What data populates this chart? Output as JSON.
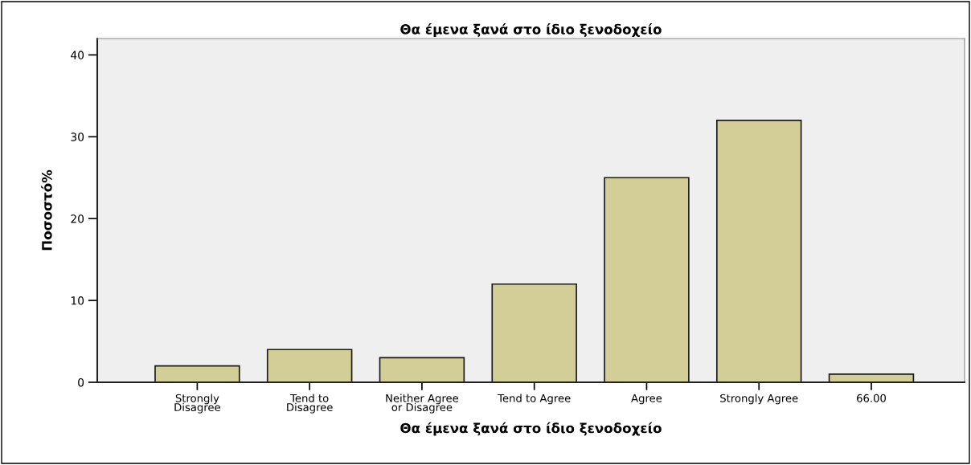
{
  "chart_data": {
    "type": "bar",
    "title": "Θα έμενα ξανά στο ίδιο ξενοδοχείο",
    "xlabel": "Θα έμενα ξανά στο ίδιο ξενοδοχείο",
    "ylabel": "Ποσοστό%",
    "categories": [
      "Strongly\nDisagree",
      "Tend to\nDisagree",
      "Neither Agree\nor Disagree",
      "Tend to Agree",
      "Agree",
      "Strongly Agree",
      "66.00"
    ],
    "values": [
      2,
      4,
      3,
      12,
      25,
      32,
      1
    ],
    "color": "#d3ce98",
    "ylim": [
      0,
      42
    ],
    "yticks": [
      0,
      10,
      20,
      30,
      40
    ],
    "grid": false
  }
}
